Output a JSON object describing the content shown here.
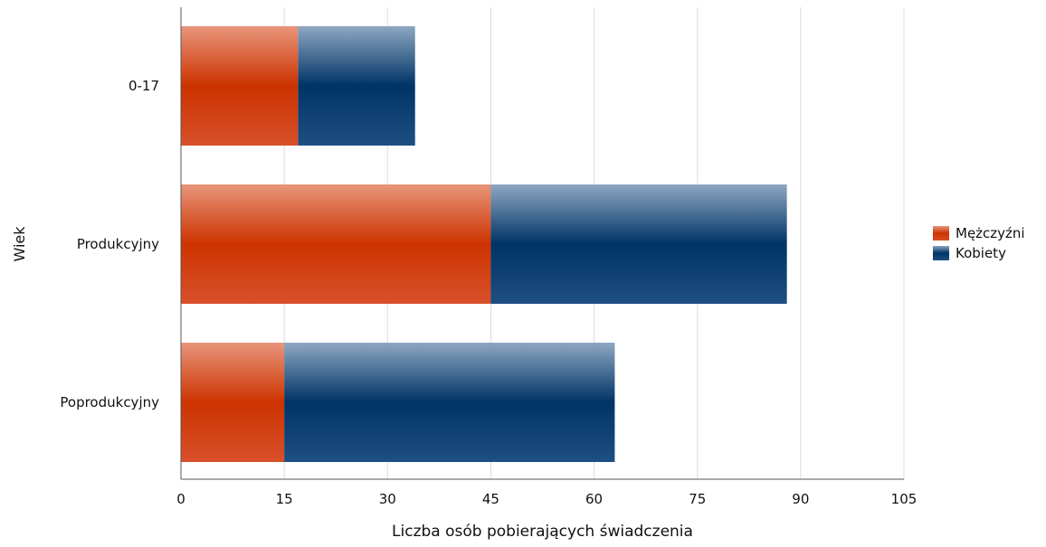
{
  "chart_data": {
    "type": "bar",
    "orientation": "horizontal",
    "stacked": true,
    "categories": [
      "0-17",
      "Produkcyjny",
      "Poprodukcyjny"
    ],
    "series": [
      {
        "name": "Mężczyźni",
        "values": [
          17,
          45,
          15
        ],
        "color": "#cc3300"
      },
      {
        "name": "Kobiety",
        "values": [
          17,
          43,
          48
        ],
        "color": "#003366"
      }
    ],
    "xlabel": "Liczba osób pobierających świadczenia",
    "ylabel": "Wiek",
    "xlim": [
      0,
      105
    ],
    "xticks": [
      0,
      15,
      30,
      45,
      60,
      75,
      90,
      105
    ],
    "grid": true,
    "legend_position": "right"
  }
}
